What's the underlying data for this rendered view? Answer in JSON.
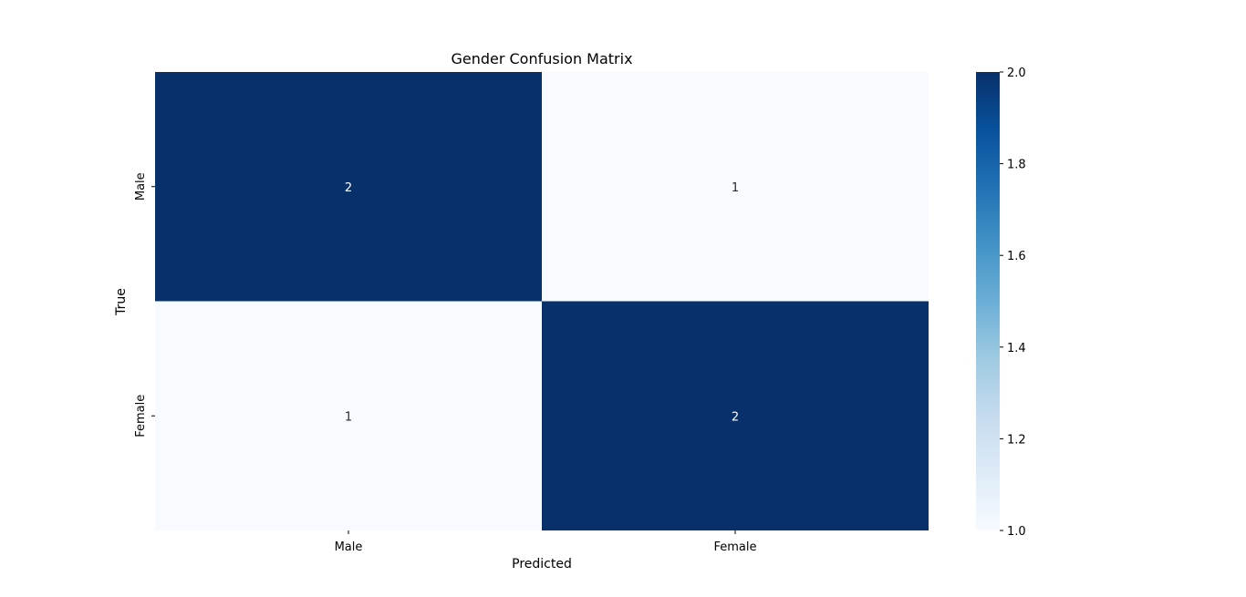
{
  "chart_data": {
    "type": "heatmap",
    "title": "Gender Confusion Matrix",
    "xlabel": "Predicted",
    "ylabel": "True",
    "x_categories": [
      "Male",
      "Female"
    ],
    "y_categories": [
      "Male",
      "Female"
    ],
    "values": [
      [
        2,
        1
      ],
      [
        1,
        2
      ]
    ],
    "colormap": "Blues",
    "vmin": 1.0,
    "vmax": 2.0,
    "colors": {
      "low": "#f7fbff",
      "high": "#08306b"
    },
    "colorbar": {
      "ticks": [
        "1.0",
        "1.2",
        "1.4",
        "1.6",
        "1.8",
        "2.0"
      ],
      "placement": "right"
    },
    "annotations": true,
    "grid": false
  }
}
